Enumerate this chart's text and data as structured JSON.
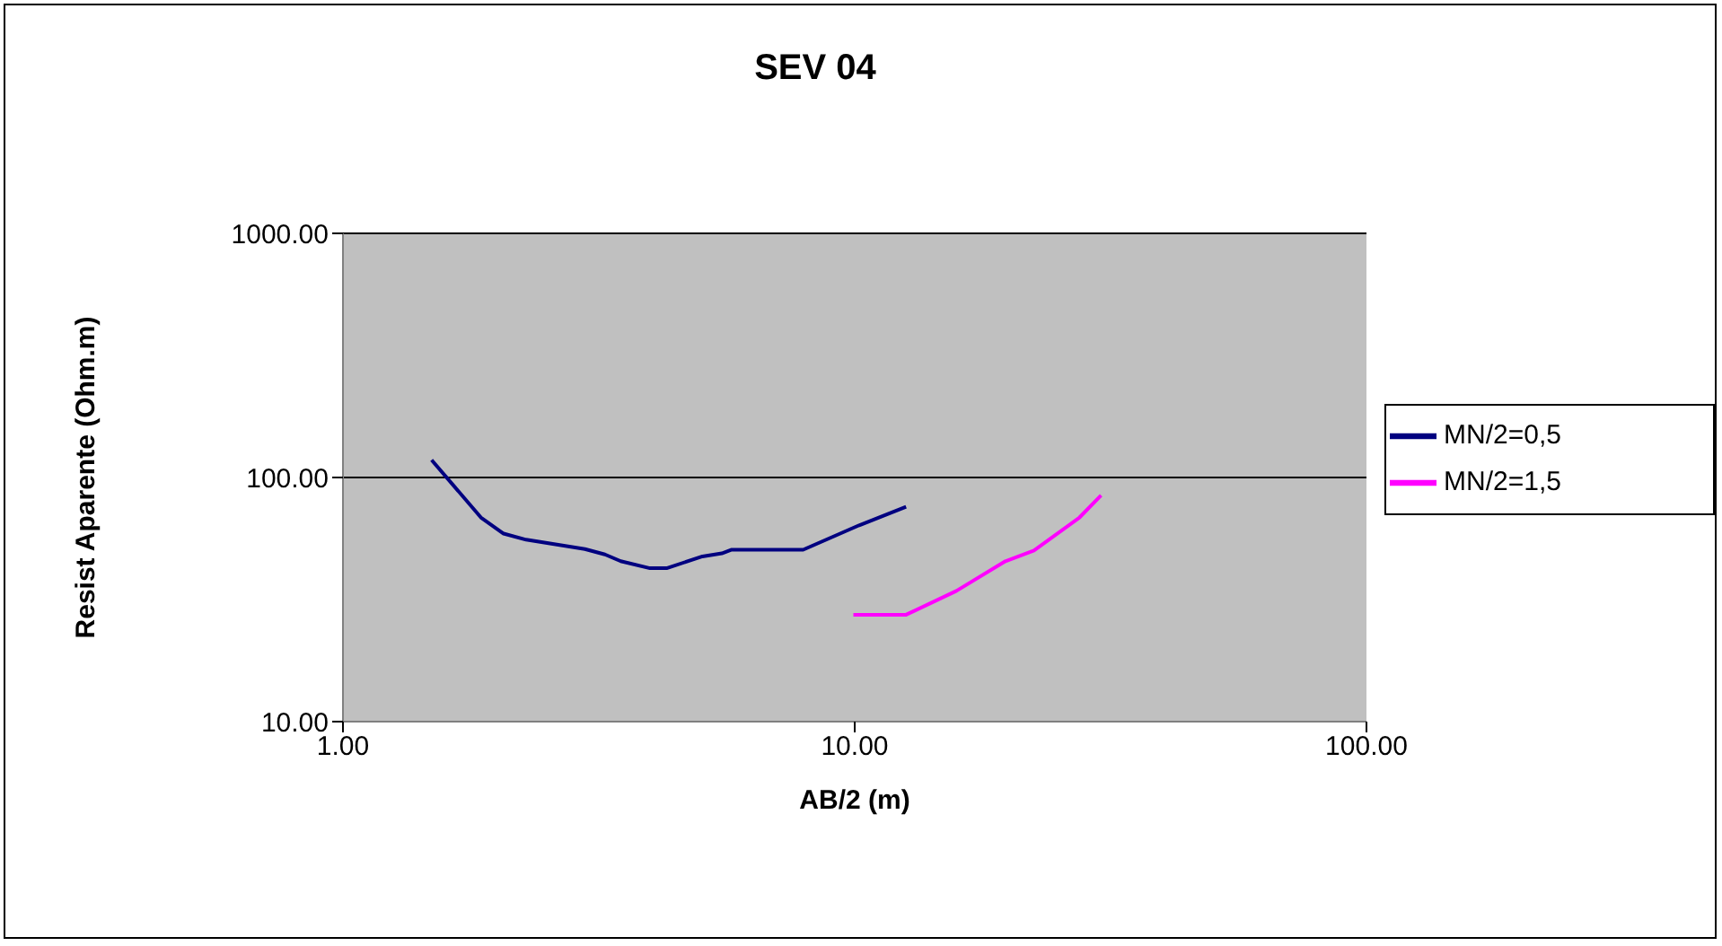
{
  "chart_data": {
    "type": "line",
    "title": "SEV 04",
    "xlabel": "AB/2 (m)",
    "ylabel": "Resist Aparente (Ohm.m)",
    "log": "xy",
    "grid": "y",
    "legend": "right",
    "marker": "none",
    "line_style": "solid",
    "xlim": [
      1,
      100
    ],
    "xticks": [
      {
        "value": 1,
        "label": "1.00"
      },
      {
        "value": 10,
        "label": "10.00"
      },
      {
        "value": 100,
        "label": "100.00"
      }
    ],
    "ylim": [
      10,
      1000
    ],
    "yticks": [
      {
        "value": 10,
        "label": "10.00"
      },
      {
        "value": 100,
        "label": "100.00"
      },
      {
        "value": 1000,
        "label": "1000.00"
      }
    ],
    "series": [
      {
        "name": "MN/2=0,5",
        "color": "#000080",
        "x": [
          1.49,
          1.86,
          2.06,
          2.28,
          2.97,
          3.25,
          3.49,
          3.98,
          4.29,
          5.04,
          5.5,
          5.75,
          7.93,
          10.2,
          12.6
        ],
        "values": [
          118,
          68.6,
          58.9,
          55.6,
          50.9,
          48.4,
          45.4,
          42.5,
          42.5,
          47.5,
          48.9,
          50.6,
          50.6,
          63.7,
          75.9
        ]
      },
      {
        "name": "MN/2=1,5",
        "color": "#ff00ff",
        "x": [
          9.94,
          12.6,
          15.8,
          19.7,
          22.4,
          27.5,
          30.3
        ],
        "values": [
          27.4,
          27.4,
          34.3,
          45.4,
          50.2,
          68.6,
          84.5
        ]
      }
    ]
  }
}
